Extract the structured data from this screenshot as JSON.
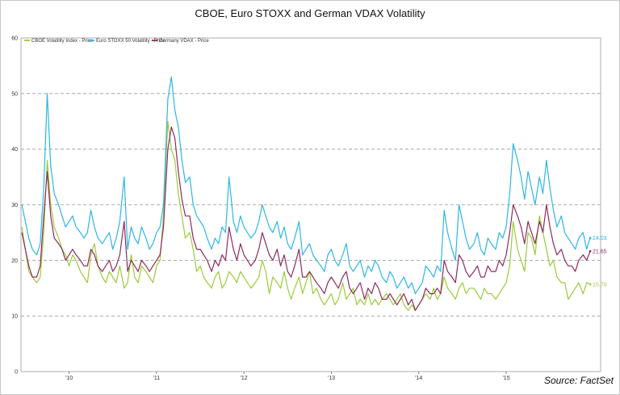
{
  "chart_data": {
    "type": "line",
    "title": "CBOE, Euro STOXX and German VDAX Volatility",
    "source": "Source: FactSet",
    "xlabel": "",
    "ylabel": "",
    "xlim": [
      2009.45,
      2016.08
    ],
    "ylim": [
      0,
      60
    ],
    "y_ticks": [
      0,
      10,
      20,
      30,
      40,
      50,
      60
    ],
    "x_ticks": [
      {
        "label": "'10",
        "x": 2010.0
      },
      {
        "label": "'11",
        "x": 2011.0
      },
      {
        "label": "'12",
        "x": 2012.0
      },
      {
        "label": "'13",
        "x": 2013.0
      },
      {
        "label": "'14",
        "x": 2014.0
      },
      {
        "label": "'15",
        "x": 2015.0
      }
    ],
    "grid": "horizontal-dashed",
    "legend": "top-left",
    "series": [
      {
        "name": "CBOE Volatility Index - Price",
        "color": "#9ccb3b",
        "last_value": "15.70",
        "x": [
          2009.46,
          2009.5,
          2009.54,
          2009.58,
          2009.63,
          2009.67,
          2009.71,
          2009.75,
          2009.79,
          2009.83,
          2009.88,
          2009.92,
          2009.96,
          2010.0,
          2010.04,
          2010.08,
          2010.13,
          2010.17,
          2010.21,
          2010.25,
          2010.29,
          2010.33,
          2010.38,
          2010.42,
          2010.46,
          2010.5,
          2010.54,
          2010.58,
          2010.63,
          2010.67,
          2010.71,
          2010.75,
          2010.79,
          2010.83,
          2010.88,
          2010.92,
          2010.96,
          2011.0,
          2011.04,
          2011.08,
          2011.13,
          2011.17,
          2011.21,
          2011.25,
          2011.29,
          2011.33,
          2011.38,
          2011.42,
          2011.46,
          2011.5,
          2011.54,
          2011.58,
          2011.63,
          2011.67,
          2011.71,
          2011.75,
          2011.79,
          2011.83,
          2011.88,
          2011.92,
          2011.96,
          2012.0,
          2012.04,
          2012.08,
          2012.13,
          2012.17,
          2012.21,
          2012.25,
          2012.29,
          2012.33,
          2012.38,
          2012.42,
          2012.46,
          2012.5,
          2012.54,
          2012.58,
          2012.63,
          2012.67,
          2012.71,
          2012.75,
          2012.79,
          2012.83,
          2012.88,
          2012.92,
          2012.96,
          2013.0,
          2013.04,
          2013.08,
          2013.13,
          2013.17,
          2013.21,
          2013.25,
          2013.29,
          2013.33,
          2013.38,
          2013.42,
          2013.46,
          2013.5,
          2013.54,
          2013.58,
          2013.63,
          2013.67,
          2013.71,
          2013.75,
          2013.79,
          2013.83,
          2013.88,
          2013.92,
          2013.96,
          2014.0,
          2014.04,
          2014.08,
          2014.13,
          2014.17,
          2014.21,
          2014.25,
          2014.29,
          2014.33,
          2014.38,
          2014.42,
          2014.46,
          2014.5,
          2014.54,
          2014.58,
          2014.63,
          2014.67,
          2014.71,
          2014.75,
          2014.79,
          2014.83,
          2014.88,
          2014.92,
          2014.96,
          2015.0,
          2015.04,
          2015.08,
          2015.13,
          2015.17,
          2015.21,
          2015.25,
          2015.29,
          2015.33,
          2015.38,
          2015.42,
          2015.46,
          2015.5,
          2015.54,
          2015.58,
          2015.63,
          2015.67,
          2015.71,
          2015.75,
          2015.79,
          2015.83,
          2015.88,
          2015.92,
          2015.96
        ],
        "values": [
          26,
          22,
          18,
          17,
          16,
          17,
          25,
          38,
          30,
          26,
          24,
          22,
          21,
          19,
          21,
          20,
          18,
          17,
          16,
          21,
          23,
          19,
          17,
          16,
          18,
          17,
          16,
          19,
          15,
          16,
          21,
          17,
          16,
          19,
          18,
          17,
          16,
          19,
          20,
          28,
          45,
          40,
          38,
          32,
          28,
          24,
          25,
          22,
          18,
          19,
          17,
          16,
          15,
          17,
          18,
          15,
          16,
          18,
          17,
          16,
          18,
          17,
          16,
          15,
          16,
          17,
          20,
          18,
          14,
          17,
          16,
          15,
          18,
          15,
          13,
          15,
          17,
          14,
          16,
          18,
          14,
          15,
          13,
          12,
          13,
          14,
          12,
          13,
          16,
          13,
          14,
          15,
          12,
          13,
          12,
          14,
          12,
          13,
          12,
          13,
          14,
          13,
          12,
          13,
          14,
          12,
          11,
          12,
          11,
          12,
          13,
          14,
          13,
          15,
          13,
          14,
          17,
          15,
          14,
          13,
          15,
          16,
          14,
          15,
          15,
          14,
          13,
          15,
          14,
          14,
          13,
          14,
          15,
          16,
          19,
          27,
          22,
          20,
          18,
          25,
          24,
          21,
          28,
          25,
          22,
          19,
          20,
          17,
          16,
          16,
          13,
          14,
          15,
          16,
          14,
          16,
          15.7
        ]
      },
      {
        "name": "Euro STOXX 50 Volatility - Price",
        "color": "#2eb6e6",
        "last_value": "24.03",
        "x": [
          2009.46,
          2009.5,
          2009.54,
          2009.58,
          2009.63,
          2009.67,
          2009.71,
          2009.75,
          2009.79,
          2009.83,
          2009.88,
          2009.92,
          2009.96,
          2010.0,
          2010.04,
          2010.08,
          2010.13,
          2010.17,
          2010.21,
          2010.25,
          2010.29,
          2010.33,
          2010.38,
          2010.42,
          2010.46,
          2010.5,
          2010.54,
          2010.58,
          2010.63,
          2010.67,
          2010.71,
          2010.75,
          2010.79,
          2010.83,
          2010.88,
          2010.92,
          2010.96,
          2011.0,
          2011.04,
          2011.08,
          2011.13,
          2011.17,
          2011.21,
          2011.25,
          2011.29,
          2011.33,
          2011.38,
          2011.42,
          2011.46,
          2011.5,
          2011.54,
          2011.58,
          2011.63,
          2011.67,
          2011.71,
          2011.75,
          2011.79,
          2011.83,
          2011.88,
          2011.92,
          2011.96,
          2012.0,
          2012.04,
          2012.08,
          2012.13,
          2012.17,
          2012.21,
          2012.25,
          2012.29,
          2012.33,
          2012.38,
          2012.42,
          2012.46,
          2012.5,
          2012.54,
          2012.58,
          2012.63,
          2012.67,
          2012.71,
          2012.75,
          2012.79,
          2012.83,
          2012.88,
          2012.92,
          2012.96,
          2013.0,
          2013.04,
          2013.08,
          2013.13,
          2013.17,
          2013.21,
          2013.25,
          2013.29,
          2013.33,
          2013.38,
          2013.42,
          2013.46,
          2013.5,
          2013.54,
          2013.58,
          2013.63,
          2013.67,
          2013.71,
          2013.75,
          2013.79,
          2013.83,
          2013.88,
          2013.92,
          2013.96,
          2014.0,
          2014.04,
          2014.08,
          2014.13,
          2014.17,
          2014.21,
          2014.25,
          2014.29,
          2014.33,
          2014.38,
          2014.42,
          2014.46,
          2014.5,
          2014.54,
          2014.58,
          2014.63,
          2014.67,
          2014.71,
          2014.75,
          2014.79,
          2014.83,
          2014.88,
          2014.92,
          2014.96,
          2015.0,
          2015.04,
          2015.08,
          2015.13,
          2015.17,
          2015.21,
          2015.25,
          2015.29,
          2015.33,
          2015.38,
          2015.42,
          2015.46,
          2015.5,
          2015.54,
          2015.58,
          2015.63,
          2015.67,
          2015.71,
          2015.75,
          2015.79,
          2015.83,
          2015.88,
          2015.92,
          2015.96
        ],
        "values": [
          30,
          27,
          24,
          22,
          21,
          23,
          33,
          50,
          37,
          32,
          30,
          28,
          26,
          27,
          28,
          26,
          25,
          24,
          25,
          29,
          26,
          24,
          23,
          24,
          25,
          22,
          24,
          27,
          35,
          22,
          26,
          24,
          23,
          26,
          24,
          22,
          23,
          25,
          26,
          30,
          49,
          53,
          47,
          44,
          38,
          34,
          35,
          30,
          28,
          27,
          26,
          24,
          22,
          24,
          23,
          26,
          25,
          35,
          27,
          25,
          28,
          26,
          25,
          24,
          25,
          27,
          30,
          28,
          26,
          25,
          27,
          24,
          26,
          23,
          22,
          24,
          27,
          21,
          22,
          23,
          21,
          20,
          19,
          18,
          21,
          22,
          20,
          19,
          21,
          23,
          19,
          18,
          19,
          20,
          17,
          19,
          18,
          20,
          19,
          17,
          16,
          18,
          17,
          15,
          16,
          17,
          15,
          16,
          14,
          15,
          16,
          19,
          18,
          17,
          19,
          18,
          29,
          25,
          22,
          20,
          30,
          27,
          24,
          22,
          23,
          25,
          22,
          21,
          24,
          23,
          22,
          25,
          24,
          26,
          32,
          41,
          38,
          35,
          31,
          36,
          33,
          30,
          35,
          32,
          38,
          33,
          29,
          26,
          28,
          25,
          24,
          23,
          22,
          24,
          25,
          22,
          24.03
        ]
      },
      {
        "name": "Germany VDAX - Price",
        "color": "#8e2b5e",
        "last_value": "21.65",
        "x": [
          2009.46,
          2009.5,
          2009.54,
          2009.58,
          2009.63,
          2009.67,
          2009.71,
          2009.75,
          2009.79,
          2009.83,
          2009.88,
          2009.92,
          2009.96,
          2010.0,
          2010.04,
          2010.08,
          2010.13,
          2010.17,
          2010.21,
          2010.25,
          2010.29,
          2010.33,
          2010.38,
          2010.42,
          2010.46,
          2010.5,
          2010.54,
          2010.58,
          2010.63,
          2010.67,
          2010.71,
          2010.75,
          2010.79,
          2010.83,
          2010.88,
          2010.92,
          2010.96,
          2011.0,
          2011.04,
          2011.08,
          2011.13,
          2011.17,
          2011.21,
          2011.25,
          2011.29,
          2011.33,
          2011.38,
          2011.42,
          2011.46,
          2011.5,
          2011.54,
          2011.58,
          2011.63,
          2011.67,
          2011.71,
          2011.75,
          2011.79,
          2011.83,
          2011.88,
          2011.92,
          2011.96,
          2012.0,
          2012.04,
          2012.08,
          2012.13,
          2012.17,
          2012.21,
          2012.25,
          2012.29,
          2012.33,
          2012.38,
          2012.42,
          2012.46,
          2012.5,
          2012.54,
          2012.58,
          2012.63,
          2012.67,
          2012.71,
          2012.75,
          2012.79,
          2012.83,
          2012.88,
          2012.92,
          2012.96,
          2013.0,
          2013.04,
          2013.08,
          2013.13,
          2013.17,
          2013.21,
          2013.25,
          2013.29,
          2013.33,
          2013.38,
          2013.42,
          2013.46,
          2013.5,
          2013.54,
          2013.58,
          2013.63,
          2013.67,
          2013.71,
          2013.75,
          2013.79,
          2013.83,
          2013.88,
          2013.92,
          2013.96,
          2014.0,
          2014.04,
          2014.08,
          2014.13,
          2014.17,
          2014.21,
          2014.25,
          2014.29,
          2014.33,
          2014.38,
          2014.42,
          2014.46,
          2014.5,
          2014.54,
          2014.58,
          2014.63,
          2014.67,
          2014.71,
          2014.75,
          2014.79,
          2014.83,
          2014.88,
          2014.92,
          2014.96,
          2015.0,
          2015.04,
          2015.08,
          2015.13,
          2015.17,
          2015.21,
          2015.25,
          2015.29,
          2015.33,
          2015.38,
          2015.42,
          2015.46,
          2015.5,
          2015.54,
          2015.58,
          2015.63,
          2015.67,
          2015.71,
          2015.75,
          2015.79,
          2015.83,
          2015.88,
          2015.92,
          2015.96
        ],
        "values": [
          25,
          22,
          19,
          17,
          17,
          19,
          28,
          36,
          28,
          24,
          23,
          22,
          20,
          21,
          22,
          21,
          20,
          19,
          19,
          22,
          21,
          19,
          18,
          19,
          20,
          18,
          19,
          21,
          27,
          18,
          20,
          19,
          18,
          20,
          19,
          18,
          19,
          20,
          21,
          26,
          40,
          44,
          42,
          36,
          31,
          28,
          28,
          24,
          22,
          22,
          21,
          20,
          18,
          20,
          19,
          21,
          20,
          26,
          22,
          20,
          23,
          21,
          20,
          19,
          20,
          22,
          25,
          23,
          21,
          20,
          22,
          19,
          21,
          18,
          17,
          19,
          22,
          17,
          17,
          18,
          17,
          16,
          15,
          14,
          16,
          17,
          16,
          15,
          17,
          18,
          15,
          14,
          15,
          16,
          13,
          15,
          14,
          16,
          15,
          13,
          13,
          14,
          13,
          12,
          13,
          14,
          12,
          13,
          11,
          12,
          13,
          15,
          14,
          14,
          15,
          14,
          20,
          18,
          17,
          16,
          21,
          20,
          18,
          17,
          18,
          19,
          17,
          17,
          19,
          18,
          18,
          20,
          19,
          21,
          25,
          30,
          28,
          26,
          23,
          27,
          25,
          23,
          27,
          25,
          30,
          26,
          23,
          21,
          22,
          20,
          19,
          19,
          18,
          20,
          21,
          20,
          21.65
        ]
      }
    ]
  }
}
